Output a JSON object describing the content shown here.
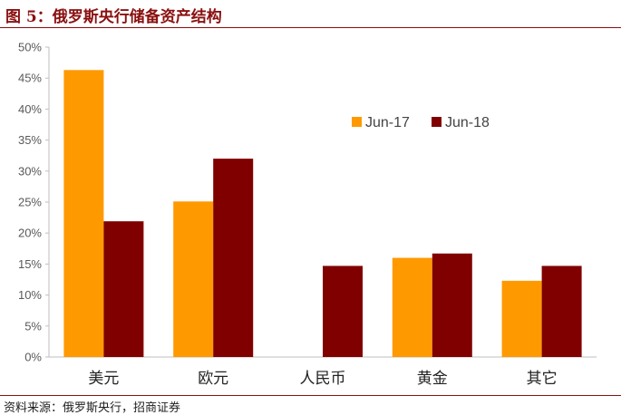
{
  "figure": {
    "title": "图 5：俄罗斯央行储备资产结构",
    "source": "资料来源：俄罗斯央行，招商证券"
  },
  "chart_data": {
    "type": "bar",
    "categories": [
      "美元",
      "欧元",
      "人民币",
      "黄金",
      "其它"
    ],
    "series": [
      {
        "name": "Jun-17",
        "color": "#ff9900",
        "values": [
          46.3,
          25.1,
          0,
          16.0,
          12.3
        ]
      },
      {
        "name": "Jun-18",
        "color": "#800000",
        "values": [
          21.9,
          32.0,
          14.7,
          16.7,
          14.7
        ]
      }
    ],
    "ylim": [
      0,
      50
    ],
    "yticks": [
      "0%",
      "5%",
      "10%",
      "15%",
      "20%",
      "25%",
      "30%",
      "35%",
      "40%",
      "45%",
      "50%"
    ],
    "grid": false,
    "legend_position": "top-right"
  }
}
